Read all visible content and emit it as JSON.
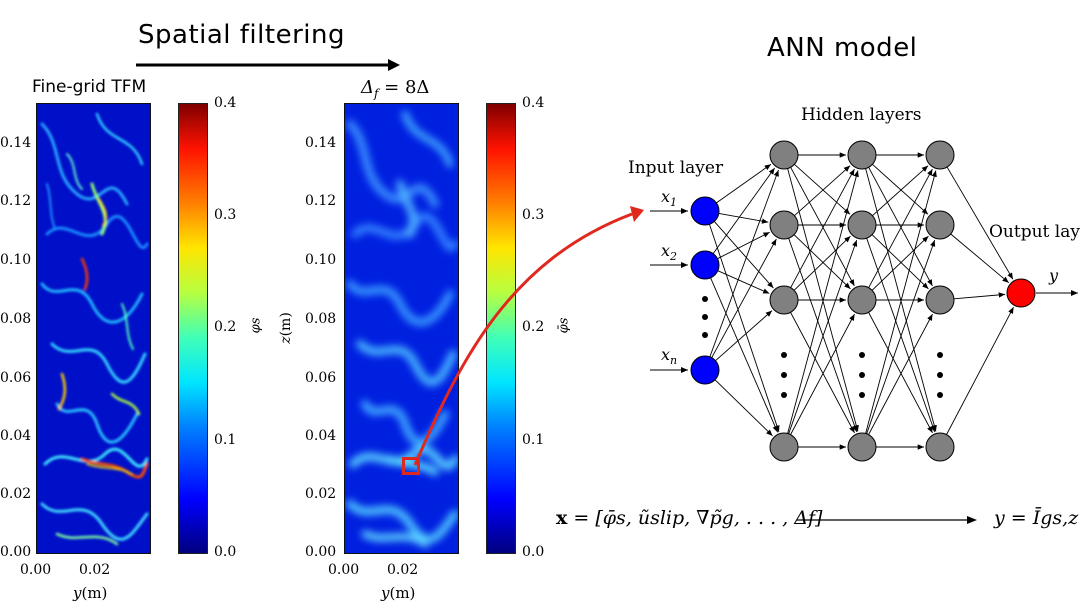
{
  "header": {
    "filter_title": "Spatial filtering",
    "ann_title": "ANN model"
  },
  "panels": {
    "left_title": "Fine-grid TFM",
    "right_title": "Δ",
    "right_title_sub": "f",
    "right_title_rest": " = 8Δ",
    "y_ticks": [
      "0.00",
      "0.02",
      "0.04",
      "0.06",
      "0.08",
      "0.10",
      "0.12",
      "0.14"
    ],
    "x_ticks": [
      "0.00",
      "0.02"
    ],
    "x_label_var": "y",
    "x_label_unit": "(m)",
    "y_label_var": "z",
    "y_label_unit": "(m)"
  },
  "colorbars": {
    "ticks": [
      "0.0",
      "0.1",
      "0.2",
      "0.3",
      "0.4"
    ],
    "left_label": "φs",
    "right_label": "φ̄s"
  },
  "network": {
    "hidden_label": "Hidden layers",
    "input_label": "Input layer",
    "output_label": "Output layer",
    "inputs": [
      "x",
      "x",
      "x"
    ],
    "input_subs": [
      "1",
      "2",
      "n"
    ],
    "output": "y"
  },
  "equation": {
    "left_bold": "x",
    "left_rest": " = [φ̄s, ũslip, ∇p̃g, . . . , Δf]",
    "right": "y = Īgs,z"
  },
  "colors": {
    "input_node": "#0000ff",
    "hidden_node": "#808080",
    "output_node": "#ff0000",
    "arrow_red": "#e0281e"
  }
}
